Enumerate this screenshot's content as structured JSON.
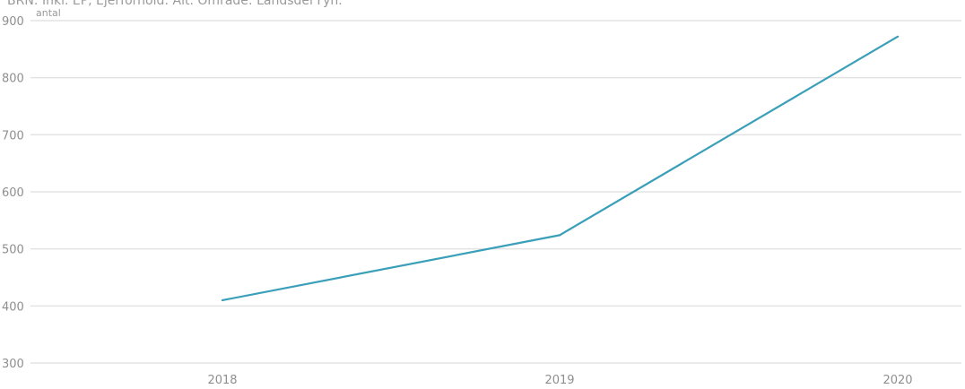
{
  "chart_data": {
    "type": "line",
    "subtitle": "BRN: Inkl. EP, Ejerforhold: Alt. Område: Landsdel Fyn.",
    "ylabel": "antal",
    "x": [
      "2018",
      "2019",
      "2020"
    ],
    "series": [
      {
        "values": [
          410,
          524,
          872
        ]
      }
    ],
    "ylim": [
      300,
      900
    ],
    "yticks": [
      900,
      800,
      700,
      600,
      500,
      400,
      300
    ],
    "grid": true,
    "line_color": "#3a9fb8",
    "grid_color": "#e3e3e3"
  }
}
